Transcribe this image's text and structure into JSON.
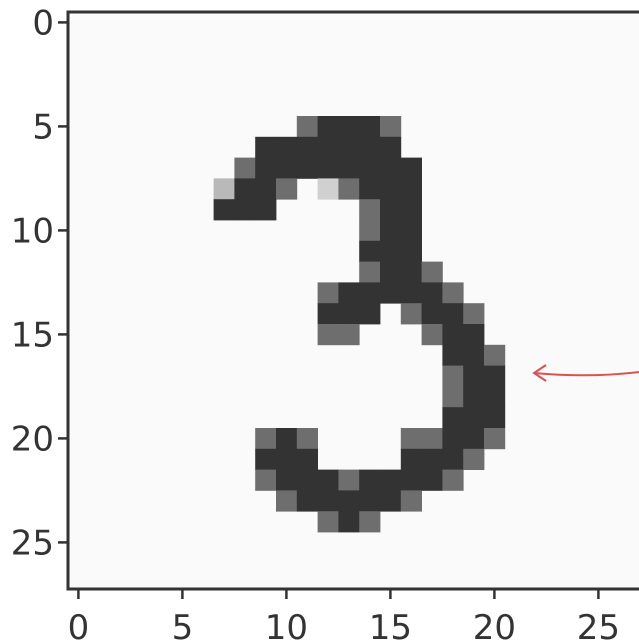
{
  "chart_data": {
    "type": "heatmap",
    "title": "",
    "xlabel": "",
    "ylabel": "",
    "xlim": [
      -0.5,
      27.5
    ],
    "ylim": [
      27.5,
      -0.5
    ],
    "x_ticks": [
      "0",
      "5",
      "10",
      "15",
      "20",
      "25"
    ],
    "y_ticks": [
      "0",
      "5",
      "10",
      "15",
      "20",
      "25"
    ],
    "grid": false,
    "colors": {
      "background": "#fafafa",
      "dark": "#333333",
      "mid": "#6e6e6e",
      "light": "#b9b9b9",
      "lighter": "#d0d0d0",
      "axis": "#333333",
      "arrow": "#d9534f"
    },
    "pixels": [
      {
        "row": 5,
        "col": 11,
        "level": 2
      },
      {
        "row": 5,
        "col": 12,
        "level": 3
      },
      {
        "row": 5,
        "col": 13,
        "level": 3
      },
      {
        "row": 5,
        "col": 14,
        "level": 3
      },
      {
        "row": 5,
        "col": 15,
        "level": 2
      },
      {
        "row": 6,
        "col": 9,
        "level": 3
      },
      {
        "row": 6,
        "col": 10,
        "level": 3
      },
      {
        "row": 6,
        "col": 11,
        "level": 3
      },
      {
        "row": 6,
        "col": 12,
        "level": 3
      },
      {
        "row": 6,
        "col": 13,
        "level": 3
      },
      {
        "row": 6,
        "col": 14,
        "level": 3
      },
      {
        "row": 6,
        "col": 15,
        "level": 3
      },
      {
        "row": 7,
        "col": 8,
        "level": 2
      },
      {
        "row": 7,
        "col": 9,
        "level": 3
      },
      {
        "row": 7,
        "col": 10,
        "level": 3
      },
      {
        "row": 7,
        "col": 11,
        "level": 3
      },
      {
        "row": 7,
        "col": 12,
        "level": 3
      },
      {
        "row": 7,
        "col": 13,
        "level": 3
      },
      {
        "row": 7,
        "col": 14,
        "level": 3
      },
      {
        "row": 7,
        "col": 15,
        "level": 3
      },
      {
        "row": 7,
        "col": 16,
        "level": 3
      },
      {
        "row": 8,
        "col": 7,
        "level": 1
      },
      {
        "row": 8,
        "col": 8,
        "level": 3
      },
      {
        "row": 8,
        "col": 9,
        "level": 3
      },
      {
        "row": 8,
        "col": 10,
        "level": 2
      },
      {
        "row": 8,
        "col": 12,
        "level": 0.5
      },
      {
        "row": 8,
        "col": 13,
        "level": 2
      },
      {
        "row": 8,
        "col": 14,
        "level": 3
      },
      {
        "row": 8,
        "col": 15,
        "level": 3
      },
      {
        "row": 8,
        "col": 16,
        "level": 3
      },
      {
        "row": 9,
        "col": 7,
        "level": 3
      },
      {
        "row": 9,
        "col": 8,
        "level": 3
      },
      {
        "row": 9,
        "col": 9,
        "level": 3
      },
      {
        "row": 9,
        "col": 14,
        "level": 2
      },
      {
        "row": 9,
        "col": 15,
        "level": 3
      },
      {
        "row": 9,
        "col": 16,
        "level": 3
      },
      {
        "row": 10,
        "col": 14,
        "level": 2
      },
      {
        "row": 10,
        "col": 15,
        "level": 3
      },
      {
        "row": 10,
        "col": 16,
        "level": 3
      },
      {
        "row": 11,
        "col": 14,
        "level": 3
      },
      {
        "row": 11,
        "col": 15,
        "level": 3
      },
      {
        "row": 11,
        "col": 16,
        "level": 3
      },
      {
        "row": 12,
        "col": 14,
        "level": 2
      },
      {
        "row": 12,
        "col": 15,
        "level": 3
      },
      {
        "row": 12,
        "col": 16,
        "level": 3
      },
      {
        "row": 12,
        "col": 17,
        "level": 2
      },
      {
        "row": 13,
        "col": 12,
        "level": 2
      },
      {
        "row": 13,
        "col": 13,
        "level": 3
      },
      {
        "row": 13,
        "col": 14,
        "level": 3
      },
      {
        "row": 13,
        "col": 15,
        "level": 3
      },
      {
        "row": 13,
        "col": 16,
        "level": 3
      },
      {
        "row": 13,
        "col": 17,
        "level": 3
      },
      {
        "row": 13,
        "col": 18,
        "level": 2
      },
      {
        "row": 14,
        "col": 12,
        "level": 3
      },
      {
        "row": 14,
        "col": 13,
        "level": 3
      },
      {
        "row": 14,
        "col": 14,
        "level": 3
      },
      {
        "row": 14,
        "col": 16,
        "level": 2
      },
      {
        "row": 14,
        "col": 17,
        "level": 3
      },
      {
        "row": 14,
        "col": 18,
        "level": 3
      },
      {
        "row": 14,
        "col": 19,
        "level": 2
      },
      {
        "row": 15,
        "col": 12,
        "level": 2
      },
      {
        "row": 15,
        "col": 13,
        "level": 2
      },
      {
        "row": 15,
        "col": 17,
        "level": 2
      },
      {
        "row": 15,
        "col": 18,
        "level": 3
      },
      {
        "row": 15,
        "col": 19,
        "level": 3
      },
      {
        "row": 16,
        "col": 18,
        "level": 3
      },
      {
        "row": 16,
        "col": 19,
        "level": 3
      },
      {
        "row": 16,
        "col": 20,
        "level": 2
      },
      {
        "row": 17,
        "col": 18,
        "level": 2
      },
      {
        "row": 17,
        "col": 19,
        "level": 3
      },
      {
        "row": 17,
        "col": 20,
        "level": 3
      },
      {
        "row": 18,
        "col": 18,
        "level": 2
      },
      {
        "row": 18,
        "col": 19,
        "level": 3
      },
      {
        "row": 18,
        "col": 20,
        "level": 3
      },
      {
        "row": 19,
        "col": 18,
        "level": 3
      },
      {
        "row": 19,
        "col": 19,
        "level": 3
      },
      {
        "row": 19,
        "col": 20,
        "level": 3
      },
      {
        "row": 20,
        "col": 9,
        "level": 2
      },
      {
        "row": 20,
        "col": 10,
        "level": 3
      },
      {
        "row": 20,
        "col": 11,
        "level": 2
      },
      {
        "row": 20,
        "col": 16,
        "level": 2
      },
      {
        "row": 20,
        "col": 17,
        "level": 2
      },
      {
        "row": 20,
        "col": 18,
        "level": 3
      },
      {
        "row": 20,
        "col": 19,
        "level": 3
      },
      {
        "row": 20,
        "col": 20,
        "level": 2
      },
      {
        "row": 21,
        "col": 9,
        "level": 3
      },
      {
        "row": 21,
        "col": 10,
        "level": 3
      },
      {
        "row": 21,
        "col": 11,
        "level": 3
      },
      {
        "row": 21,
        "col": 16,
        "level": 3
      },
      {
        "row": 21,
        "col": 17,
        "level": 3
      },
      {
        "row": 21,
        "col": 18,
        "level": 3
      },
      {
        "row": 21,
        "col": 19,
        "level": 2
      },
      {
        "row": 22,
        "col": 9,
        "level": 2
      },
      {
        "row": 22,
        "col": 10,
        "level": 3
      },
      {
        "row": 22,
        "col": 11,
        "level": 3
      },
      {
        "row": 22,
        "col": 12,
        "level": 3
      },
      {
        "row": 22,
        "col": 13,
        "level": 2
      },
      {
        "row": 22,
        "col": 14,
        "level": 3
      },
      {
        "row": 22,
        "col": 15,
        "level": 3
      },
      {
        "row": 22,
        "col": 16,
        "level": 3
      },
      {
        "row": 22,
        "col": 17,
        "level": 3
      },
      {
        "row": 22,
        "col": 18,
        "level": 2
      },
      {
        "row": 23,
        "col": 10,
        "level": 2
      },
      {
        "row": 23,
        "col": 11,
        "level": 3
      },
      {
        "row": 23,
        "col": 12,
        "level": 3
      },
      {
        "row": 23,
        "col": 13,
        "level": 3
      },
      {
        "row": 23,
        "col": 14,
        "level": 3
      },
      {
        "row": 23,
        "col": 15,
        "level": 3
      },
      {
        "row": 23,
        "col": 16,
        "level": 2
      },
      {
        "row": 24,
        "col": 12,
        "level": 2
      },
      {
        "row": 24,
        "col": 13,
        "level": 3
      },
      {
        "row": 24,
        "col": 14,
        "level": 2
      }
    ],
    "annotation": {
      "type": "arrow",
      "points_to": {
        "x": 21,
        "y": 17
      }
    }
  }
}
